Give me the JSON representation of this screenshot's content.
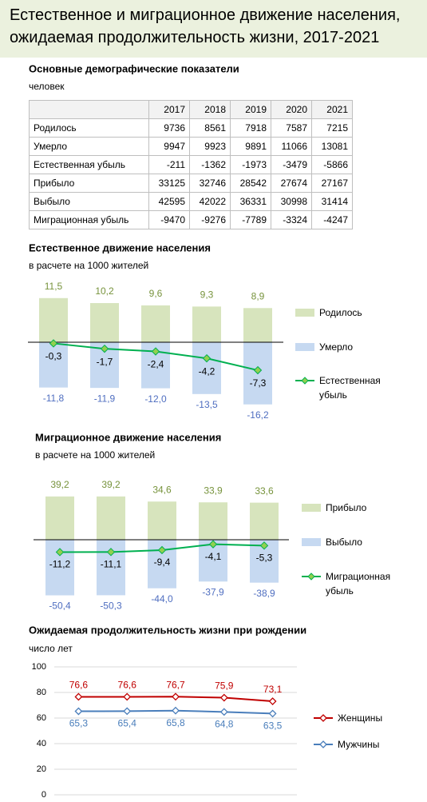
{
  "header": {
    "title_lines": [
      "Естественное и миграционное движение населения,",
      "ожидаемая продолжительность жизни, 2017-2021"
    ]
  },
  "table": {
    "title": "Основные демографические показатели",
    "unit": "человек",
    "columns": [
      "2017",
      "2018",
      "2019",
      "2020",
      "2021"
    ],
    "rows": [
      {
        "label": "Родилось",
        "values": [
          9736,
          8561,
          7918,
          7587,
          7215
        ]
      },
      {
        "label": "Умерло",
        "values": [
          9947,
          9923,
          9891,
          11066,
          13081
        ]
      },
      {
        "label": "Естественная убыль",
        "values": [
          -211,
          -1362,
          -1973,
          -3479,
          -5866
        ]
      },
      {
        "label": "Прибыло",
        "values": [
          33125,
          32746,
          28542,
          27674,
          27167
        ]
      },
      {
        "label": "Выбыло",
        "values": [
          42595,
          42022,
          36331,
          30998,
          31414
        ]
      },
      {
        "label": "Миграционная убыль",
        "values": [
          -9470,
          -9276,
          -7789,
          -3324,
          -4247
        ]
      }
    ]
  },
  "chart_data": [
    {
      "type": "bar",
      "title": "Естественное движение населения",
      "subtitle": "в расчете на 1000 жителей",
      "series": [
        {
          "name": "Родилось",
          "color": "#d7e4bd",
          "label_color": "#77933c",
          "values": [
            11.5,
            10.2,
            9.6,
            9.3,
            8.9
          ],
          "value_labels": [
            "11,5",
            "10,2",
            "9,6",
            "9,3",
            "8,9"
          ]
        },
        {
          "name": "Умерло",
          "color": "#c6d9f1",
          "label_color": "#4f6ec0",
          "values": [
            -11.8,
            -11.9,
            -12.0,
            -13.5,
            -16.2
          ],
          "value_labels": [
            "-11,8",
            "-11,9",
            "-12,0",
            "-13,5",
            "-16,2"
          ]
        },
        {
          "name": "Естественная убыль",
          "type": "line",
          "color": "#00b050",
          "marker_color": "#92d050",
          "label_color": "#000000",
          "values": [
            -0.3,
            -1.7,
            -2.4,
            -4.2,
            -7.3
          ],
          "value_labels": [
            "-0,3",
            "-1,7",
            "-2,4",
            "-4,2",
            "-7,3"
          ]
        }
      ]
    },
    {
      "type": "bar",
      "title": "Миграционное движение населения",
      "subtitle": "в расчете на 1000 жителей",
      "series": [
        {
          "name": "Прибыло",
          "color": "#d7e4bd",
          "label_color": "#77933c",
          "values": [
            39.2,
            39.2,
            34.6,
            33.9,
            33.6
          ],
          "value_labels": [
            "39,2",
            "39,2",
            "34,6",
            "33,9",
            "33,6"
          ]
        },
        {
          "name": "Выбыло",
          "color": "#c6d9f1",
          "label_color": "#4f6ec0",
          "values": [
            -50.4,
            -50.3,
            -44.0,
            -37.9,
            -38.9
          ],
          "value_labels": [
            "-50,4",
            "-50,3",
            "-44,0",
            "-37,9",
            "-38,9"
          ]
        },
        {
          "name": "Миграционная убыль",
          "type": "line",
          "color": "#00b050",
          "marker_color": "#92d050",
          "label_color": "#000000",
          "values": [
            -11.2,
            -11.1,
            -9.4,
            -4.1,
            -5.3
          ],
          "value_labels": [
            "-11,2",
            "-11,1",
            "-9,4",
            "-4,1",
            "-5,3"
          ]
        }
      ]
    },
    {
      "type": "line",
      "title": "Ожидаемая продолжительность жизни при рождении",
      "subtitle": "число лет",
      "ylim": [
        0,
        100
      ],
      "yticks": [
        0,
        20,
        40,
        60,
        80,
        100
      ],
      "grid": true,
      "series": [
        {
          "name": "Женщины",
          "color": "#c00000",
          "values": [
            76.6,
            76.6,
            76.7,
            75.9,
            73.1
          ],
          "value_labels": [
            "76,6",
            "76,6",
            "76,7",
            "75,9",
            "73,1"
          ]
        },
        {
          "name": "Мужчины",
          "color": "#4a7ebb",
          "values": [
            65.3,
            65.4,
            65.8,
            64.8,
            63.5
          ],
          "value_labels": [
            "65,3",
            "65,4",
            "65,8",
            "64,8",
            "63,5"
          ]
        }
      ]
    }
  ]
}
